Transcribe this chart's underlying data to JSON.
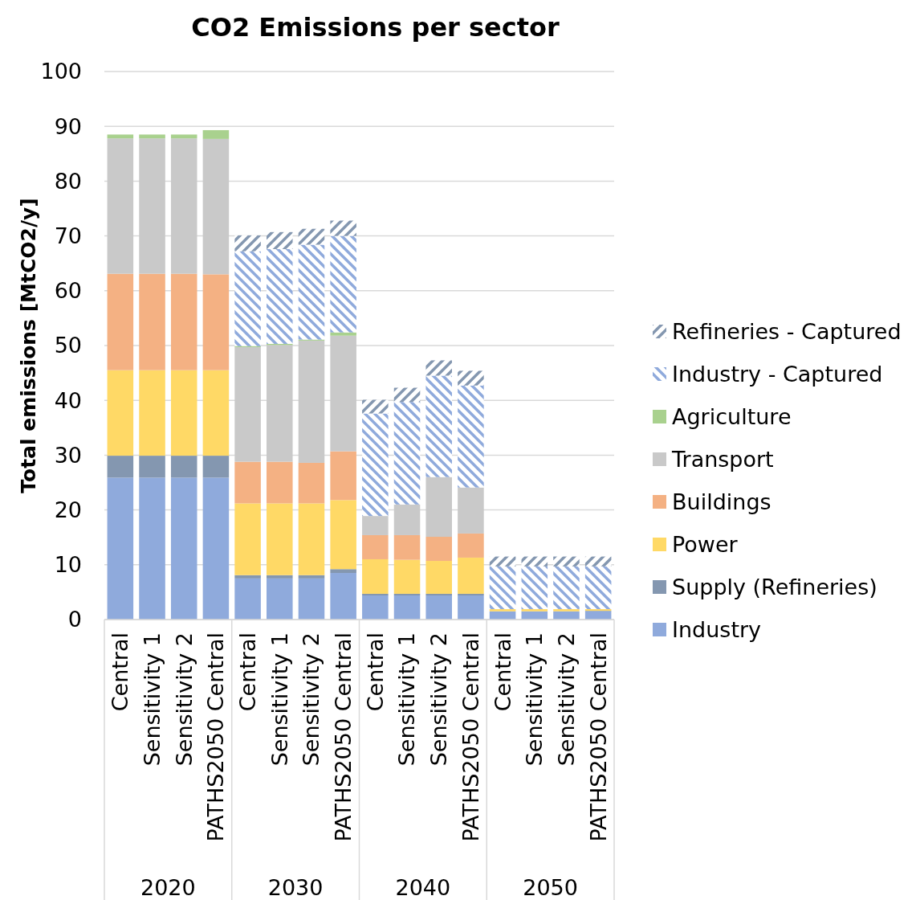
{
  "chart_data": {
    "type": "bar",
    "stacked": true,
    "title": "CO2 Emissions per sector",
    "ylabel": "Total emissions [MtCO2/y]",
    "categories": [
      "Central",
      "Sensitivity 1",
      "Sensitivity 2",
      "PATHS2050 Central",
      "Central",
      "Sensitivity 1",
      "Sensitivity 2",
      "PATHS2050 Central",
      "Central",
      "Sensitivity 1",
      "Sensitivity 2",
      "PATHS2050 Central",
      "Central",
      "Sensitivity 1",
      "Sensitivity 2",
      "PATHS2050 Central"
    ],
    "annotations": [
      "2020",
      "2030",
      "2040",
      "2050"
    ],
    "ylim": [
      0,
      100
    ],
    "yticks": [
      0,
      10,
      20,
      30,
      40,
      50,
      60,
      70,
      80,
      90,
      100
    ],
    "grid": "y",
    "legend": "right",
    "series": [
      {
        "name": "Industry",
        "color": "#8faadc",
        "values": [
          25.9,
          25.9,
          25.9,
          25.9,
          7.5,
          7.5,
          7.5,
          8.5,
          4.4,
          4.4,
          4.4,
          4.4,
          1.5,
          1.5,
          1.5,
          1.5
        ]
      },
      {
        "name": "Supply (Refineries)",
        "color": "#8497b0",
        "values": [
          4.0,
          4.0,
          4.0,
          4.0,
          0.6,
          0.6,
          0.6,
          0.7,
          0.3,
          0.3,
          0.3,
          0.3,
          0,
          0,
          0,
          0.1
        ]
      },
      {
        "name": "Power",
        "color": "#ffd966",
        "values": [
          15.6,
          15.6,
          15.6,
          15.6,
          13.1,
          13.1,
          13.1,
          12.6,
          6.3,
          6.2,
          6.0,
          6.6,
          0.4,
          0.4,
          0.4,
          0.3
        ]
      },
      {
        "name": "Buildings",
        "color": "#f4b183",
        "values": [
          17.6,
          17.6,
          17.6,
          17.5,
          7.6,
          7.6,
          7.4,
          8.9,
          4.4,
          4.5,
          4.4,
          4.4,
          0,
          0,
          0,
          0
        ]
      },
      {
        "name": "Transport",
        "color": "#c9c9c9",
        "values": [
          24.7,
          24.7,
          24.7,
          24.7,
          20.9,
          21.3,
          22.3,
          21.1,
          3.5,
          5.6,
          10.9,
          8.4,
          0,
          0,
          0,
          0
        ]
      },
      {
        "name": "Agriculture",
        "color": "#a9d18e",
        "values": [
          0.7,
          0.7,
          0.7,
          1.6,
          0.2,
          0.2,
          0.2,
          0.6,
          0,
          0,
          0,
          0,
          0,
          0,
          0,
          0
        ]
      },
      {
        "name": "Industry - Captured",
        "color": "#8faadc",
        "values": [
          0,
          0,
          0,
          0,
          17.3,
          17.3,
          17.3,
          17.6,
          18.7,
          18.7,
          18.5,
          18.6,
          7.8,
          7.8,
          7.8,
          7.8
        ]
      },
      {
        "name": "Refineries - Captured",
        "color": "#8497b0",
        "values": [
          0,
          0,
          0,
          0,
          2.9,
          3.1,
          2.9,
          2.8,
          2.5,
          2.6,
          2.8,
          2.7,
          1.8,
          1.8,
          1.8,
          1.8
        ]
      }
    ]
  }
}
